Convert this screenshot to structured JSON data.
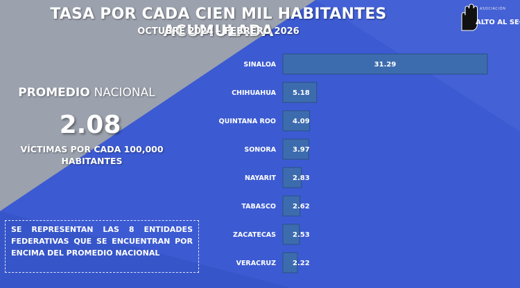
{
  "header": {
    "title": "TASA POR CADA CIEN MIL HABITANTES ACUMULADA",
    "subtitle": "OCTUBRE 2024 – FEBRERO 2026"
  },
  "logo": {
    "small_text": "ASOCIACIÓN",
    "word1": "ALTO",
    "word2": "AL SECUESTRO"
  },
  "promedio": {
    "label_bold": "PROMEDIO",
    "label_rest": "NACIONAL",
    "value": "2.08",
    "description_line1": "VÍCTIMAS POR CADA 100,000",
    "description_line2": "HABITANTES"
  },
  "note": {
    "text": "SE REPRESENTAN LAS 8 ENTIDADES FEDERATIVAS QUE SE ENCUENTRAN POR ENCIMA DEL PROMEDIO NACIONAL"
  },
  "colors": {
    "background": "#3f5fd6",
    "gray_panel": "#9aa0ad",
    "bar_fill": "#3d6cae",
    "bar_stroke": "#2a4f86"
  },
  "chart_data": {
    "type": "bar",
    "orientation": "horizontal",
    "categories": [
      "SINALOA",
      "CHIHUAHUA",
      "QUINTANA ROO",
      "SONORA",
      "NAYARIT",
      "TABASCO",
      "ZACATECAS",
      "VERACRUZ"
    ],
    "values": [
      31.29,
      5.18,
      4.09,
      3.97,
      2.83,
      2.62,
      2.53,
      2.22
    ],
    "value_labels": [
      "31.29",
      "5.18",
      "4.09",
      "3.97",
      "2.83",
      "2.62",
      "2.53",
      "2.22"
    ],
    "xlim": [
      0,
      31.29
    ],
    "grid": false,
    "legend": "none"
  }
}
